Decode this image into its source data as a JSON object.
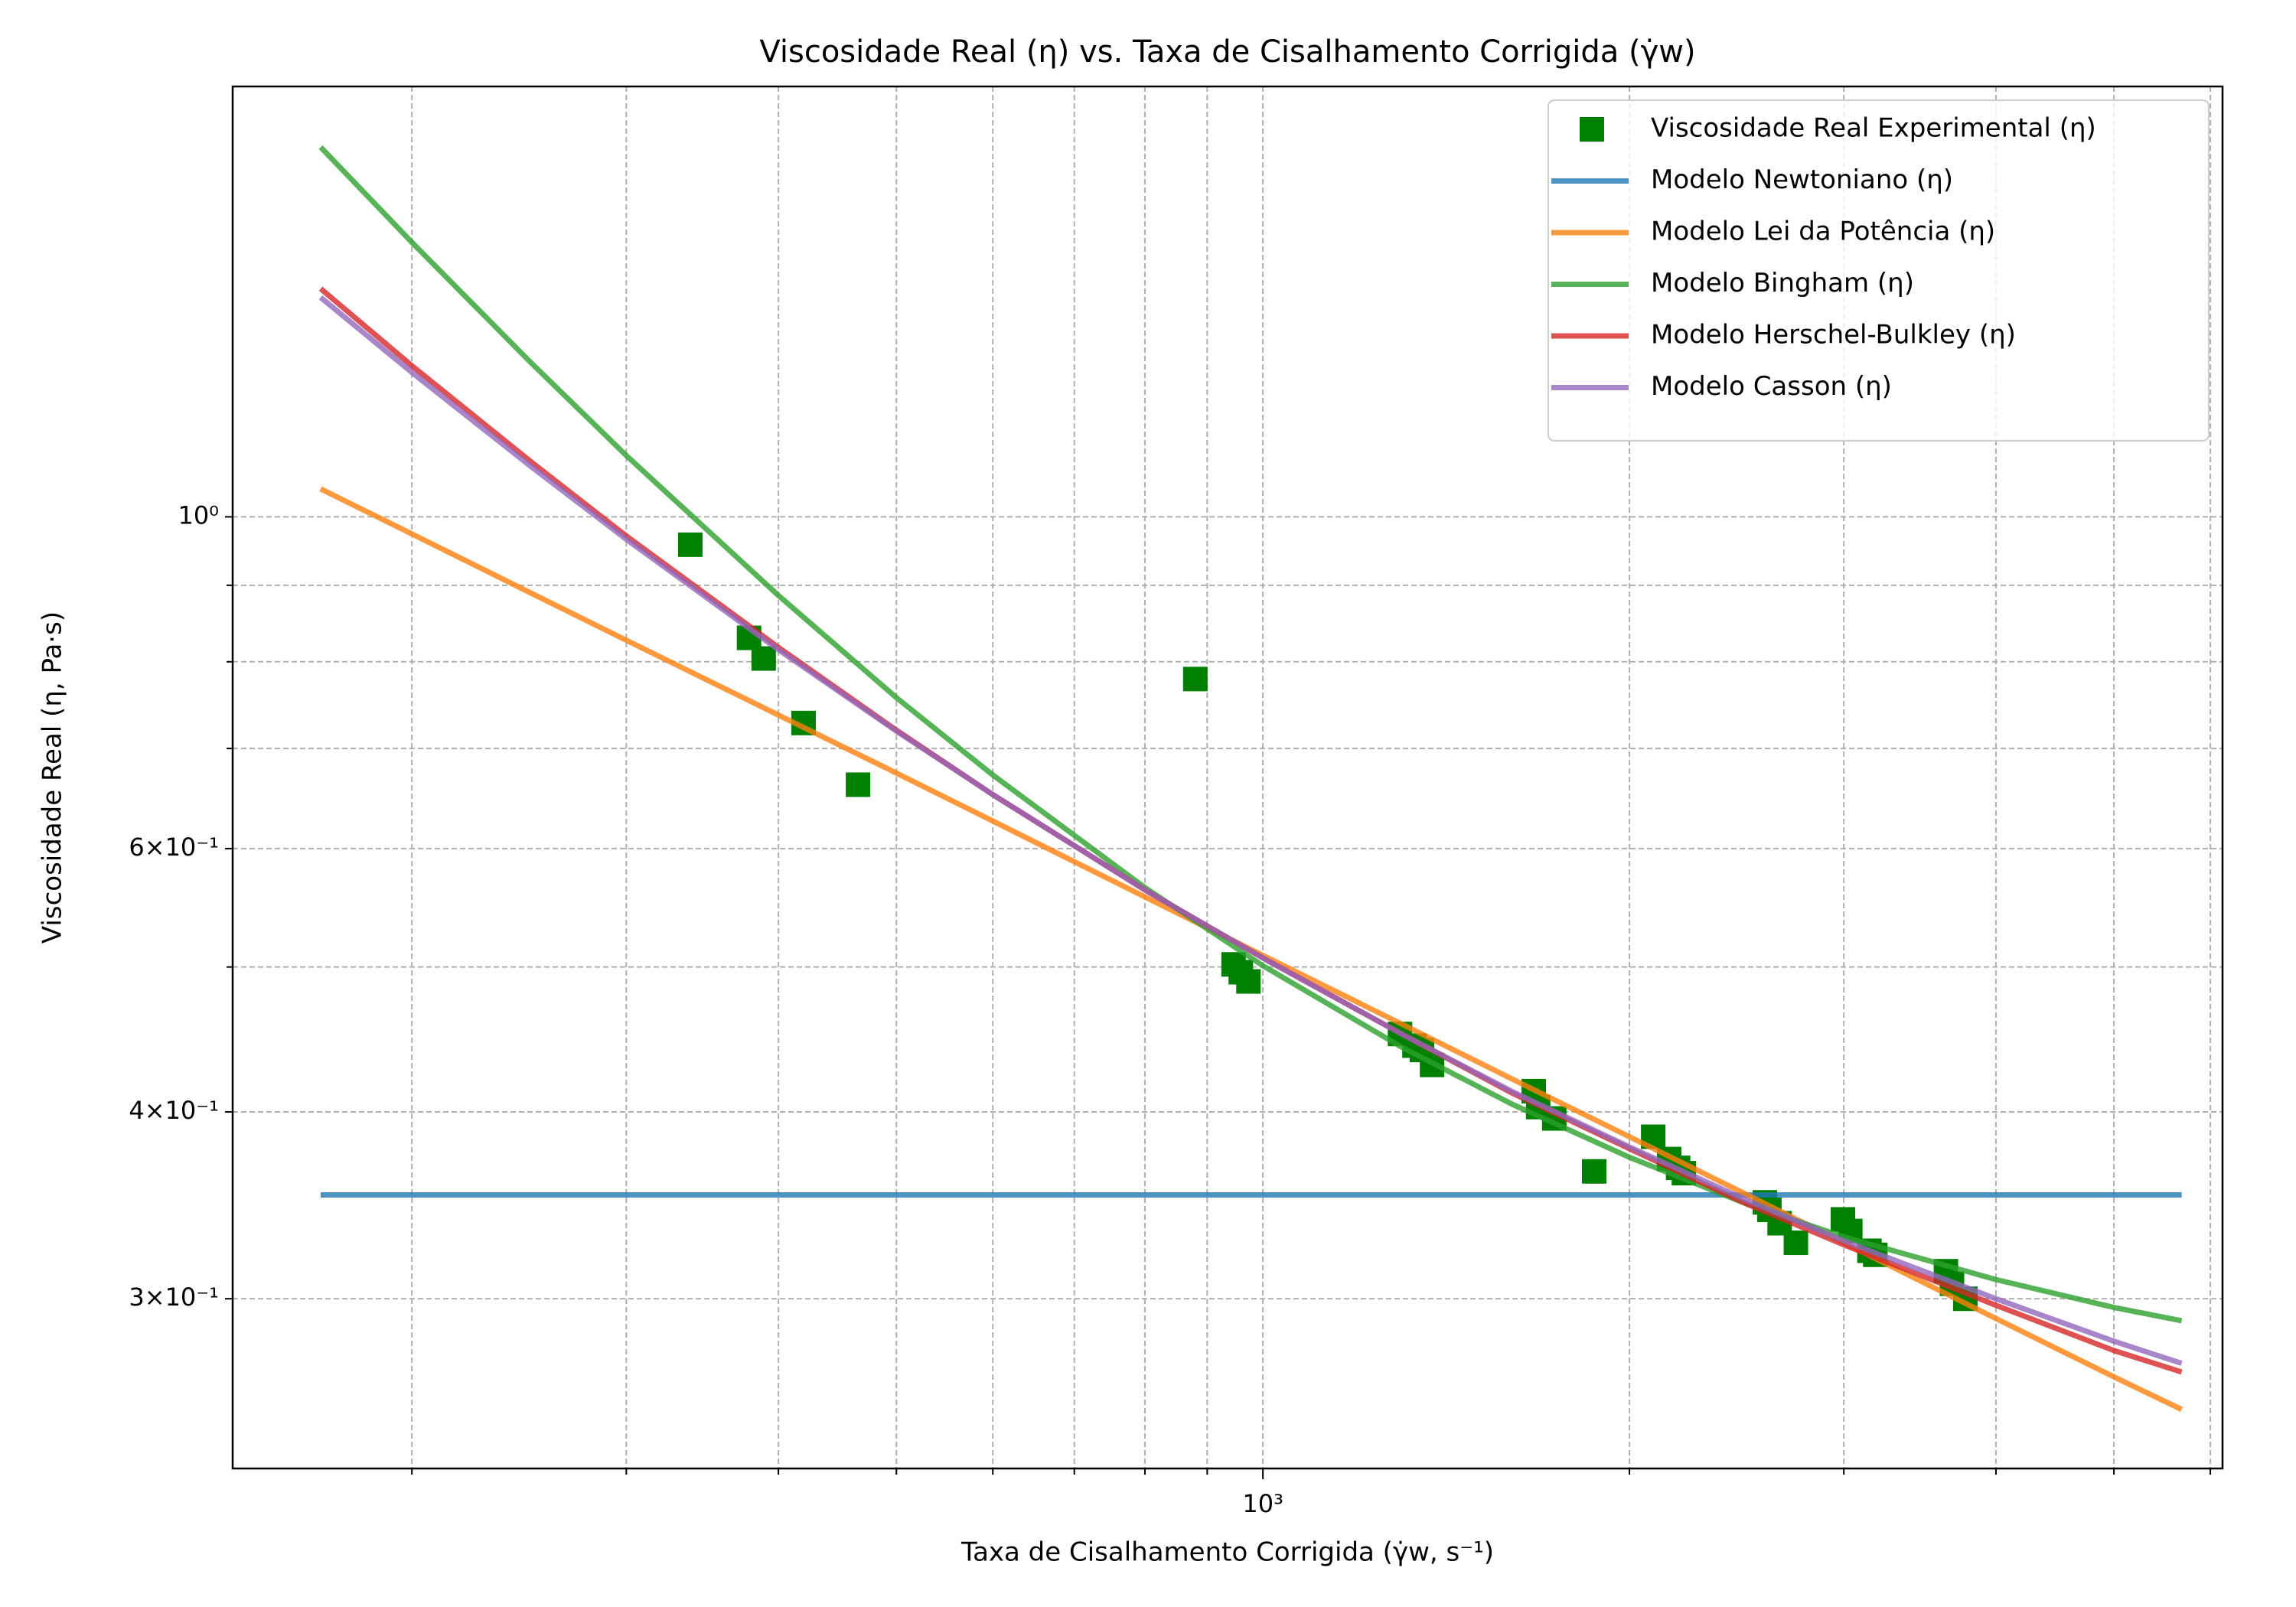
{
  "chart_data": {
    "type": "line",
    "title": "Viscosidade Real (η) vs. Taxa de Cisalhamento Corrigida (γ̇w)",
    "xlabel": "Taxa de Cisalhamento Corrigida (γ̇w, s⁻¹)",
    "ylabel": "Viscosidade Real (η, Pa·s)",
    "xscale": "log",
    "yscale": "log",
    "xlim": [
      142.5,
      6140
    ],
    "ylim": [
      0.231,
      1.94
    ],
    "xticks": [
      {
        "value": 1000,
        "label": "10³"
      }
    ],
    "xminor": [
      200,
      300,
      400,
      500,
      600,
      700,
      800,
      900,
      2000,
      3000,
      4000,
      5000,
      6000
    ],
    "yticks": [
      {
        "value": 0.3,
        "label": "3×10⁻¹"
      },
      {
        "value": 0.4,
        "label": "4×10⁻¹"
      },
      {
        "value": 0.6,
        "label": "6×10⁻¹"
      },
      {
        "value": 1,
        "label": "10⁰"
      }
    ],
    "yminor": [
      0.5,
      0.7,
      0.8,
      0.9
    ],
    "grid": true,
    "legend": "upper right",
    "series": [
      {
        "name": "Viscosidade Real Experimental (η)",
        "type": "scatter",
        "color": "#008000",
        "x": [
          338.6,
          378.4,
          389,
          419.5,
          465,
          880,
          946,
          959,
          973,
          1296,
          1332,
          1351,
          1377,
          1669,
          1683,
          1735,
          1871,
          2092,
          2156,
          2193,
          2217,
          2584,
          2606,
          2657,
          2740,
          2995,
          3037,
          3149,
          3184,
          3639,
          3681,
          3775
        ],
        "values": [
          0.958,
          0.83,
          0.804,
          0.728,
          0.662,
          0.779,
          0.502,
          0.496,
          0.489,
          0.451,
          0.443,
          0.44,
          0.43,
          0.413,
          0.403,
          0.396,
          0.365,
          0.385,
          0.372,
          0.367,
          0.364,
          0.348,
          0.344,
          0.337,
          0.327,
          0.339,
          0.333,
          0.323,
          0.321,
          0.313,
          0.307,
          0.3
        ]
      },
      {
        "name": "Modelo Newtoniano (η)",
        "type": "line",
        "color": "#1f77b4",
        "x": [
          168.3,
          5683
        ],
        "values": [
          0.352,
          0.352
        ]
      },
      {
        "name": "Modelo Lei da Potência (η)",
        "type": "line",
        "color": "#ff7f0e",
        "x": [
          168.3,
          200,
          250,
          300,
          400,
          500,
          600,
          800,
          1000,
          1300,
          1600,
          2000,
          2500,
          3000,
          4000,
          5000,
          5683
        ],
        "values": [
          1.044,
          0.974,
          0.89,
          0.827,
          0.737,
          0.674,
          0.626,
          0.557,
          0.509,
          0.458,
          0.421,
          0.385,
          0.352,
          0.327,
          0.291,
          0.266,
          0.253
        ]
      },
      {
        "name": "Modelo Bingham (η)",
        "type": "line",
        "color": "#2ca02c",
        "x": [
          168.3,
          200,
          250,
          300,
          400,
          500,
          600,
          800,
          1000,
          1300,
          1600,
          2000,
          2500,
          3000,
          4000,
          5000,
          5683
        ],
        "values": [
          1.767,
          1.526,
          1.27,
          1.099,
          0.886,
          0.757,
          0.672,
          0.565,
          0.501,
          0.442,
          0.405,
          0.373,
          0.347,
          0.33,
          0.309,
          0.296,
          0.29
        ]
      },
      {
        "name": "Modelo Herschel-Bulkley (η)",
        "type": "line",
        "color": "#d62728",
        "x": [
          168.3,
          200,
          250,
          300,
          400,
          500,
          600,
          800,
          1000,
          1300,
          1600,
          2000,
          2500,
          3000,
          4000,
          5000,
          5683
        ],
        "values": [
          1.421,
          1.262,
          1.09,
          0.971,
          0.818,
          0.72,
          0.652,
          0.563,
          0.507,
          0.451,
          0.412,
          0.378,
          0.347,
          0.326,
          0.297,
          0.277,
          0.268
        ]
      },
      {
        "name": "Modelo Casson (η)",
        "type": "line",
        "color": "#9467bd",
        "x": [
          168.3,
          200,
          250,
          300,
          400,
          500,
          600,
          800,
          1000,
          1300,
          1600,
          2000,
          2500,
          3000,
          4000,
          5000,
          5683
        ],
        "values": [
          1.402,
          1.249,
          1.082,
          0.966,
          0.815,
          0.719,
          0.652,
          0.563,
          0.507,
          0.451,
          0.413,
          0.379,
          0.349,
          0.328,
          0.3,
          0.281,
          0.2716
        ]
      }
    ]
  }
}
